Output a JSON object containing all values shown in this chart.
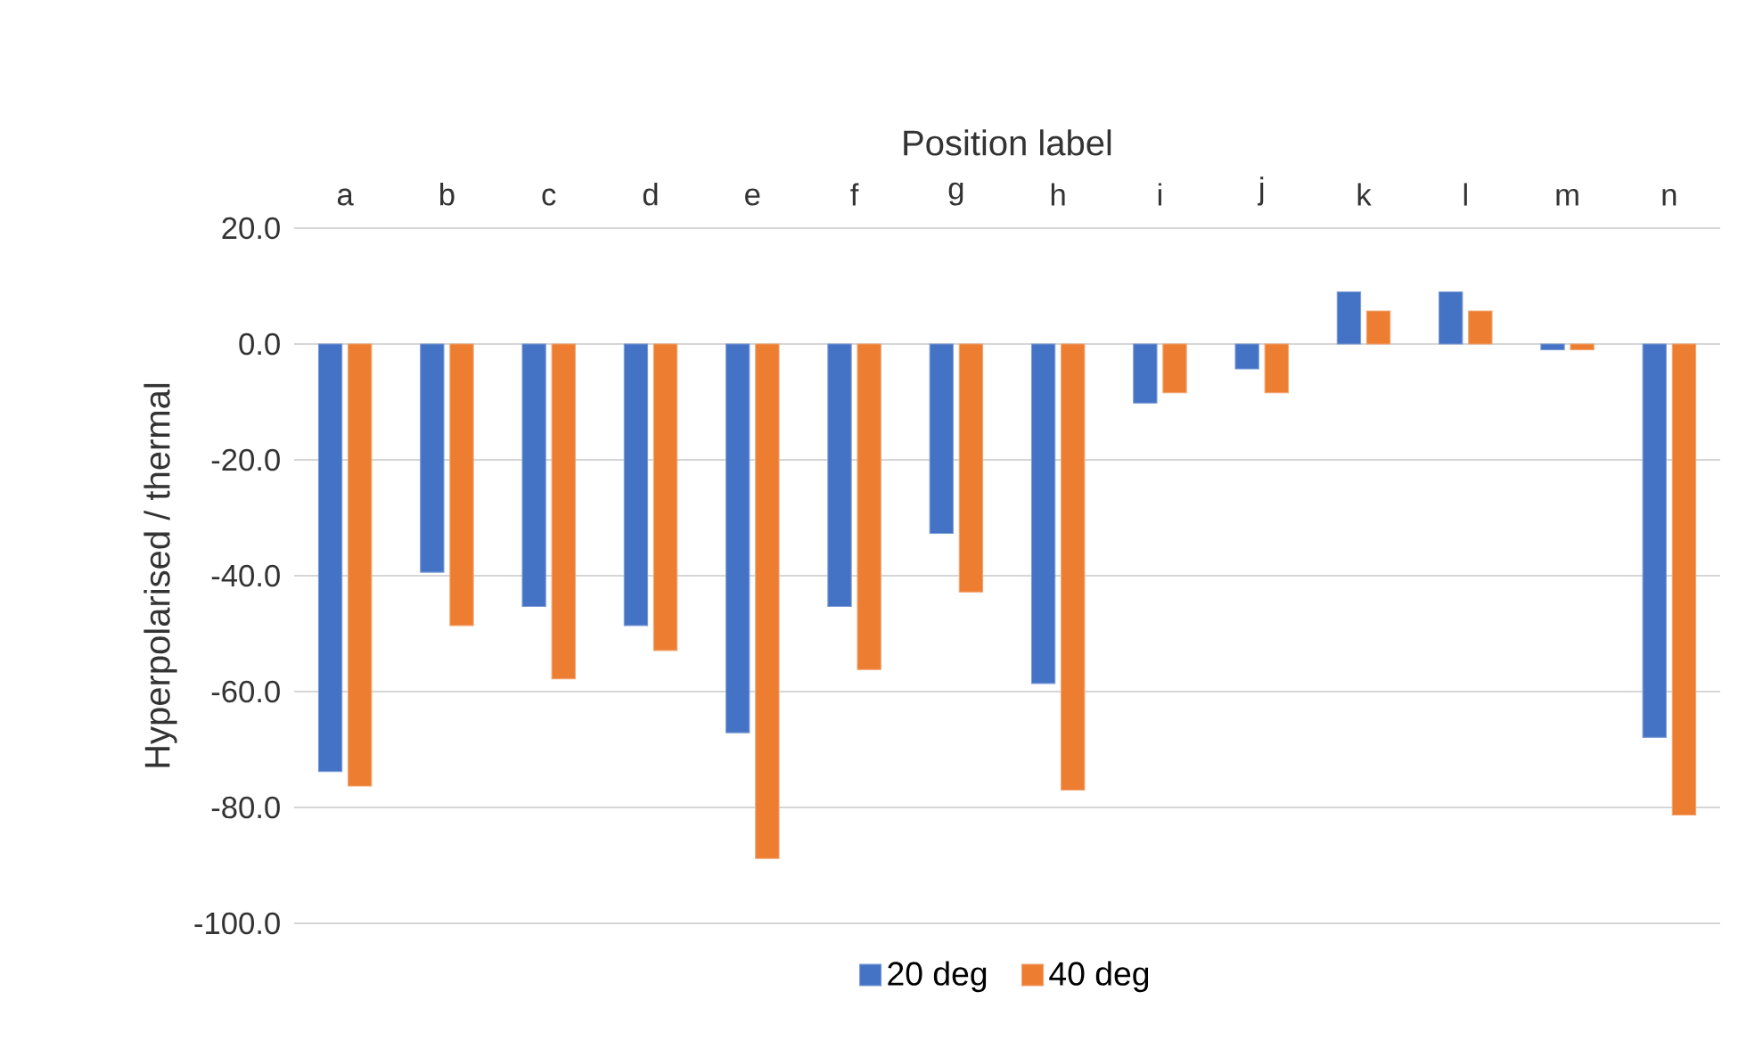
{
  "chart_data": {
    "type": "bar",
    "xlabel": "Position label",
    "ylabel": "Hyperpolarised / thermal",
    "categories": [
      "a",
      "b",
      "c",
      "d",
      "e",
      "f",
      "g",
      "h",
      "i",
      "j",
      "k",
      "l",
      "m",
      "n"
    ],
    "series": [
      {
        "name": "20 deg",
        "color": "#4472c4",
        "values": [
          -73.8,
          -39.4,
          -45.3,
          -48.6,
          -67.1,
          -45.3,
          -32.7,
          -58.6,
          -10.2,
          -4.3,
          9.0,
          9.0,
          -1.0,
          -67.9
        ]
      },
      {
        "name": "40 deg",
        "color": "#ed7d31",
        "values": [
          -76.3,
          -48.6,
          -57.8,
          -52.9,
          -88.8,
          -56.2,
          -42.8,
          -77.0,
          -8.4,
          -8.4,
          5.7,
          5.7,
          -1.0,
          -81.3
        ]
      }
    ],
    "ylim": [
      -100,
      20
    ],
    "yticks": [
      {
        "value": -100,
        "label": "-100.0"
      },
      {
        "value": -80,
        "label": "-80.0"
      },
      {
        "value": -60,
        "label": "-60.0"
      },
      {
        "value": -40,
        "label": "-40.0"
      },
      {
        "value": -20,
        "label": "-20.0"
      },
      {
        "value": 0,
        "label": "0.0"
      },
      {
        "value": 20,
        "label": "20.0"
      }
    ],
    "grid": "y",
    "legend": "bottom"
  }
}
